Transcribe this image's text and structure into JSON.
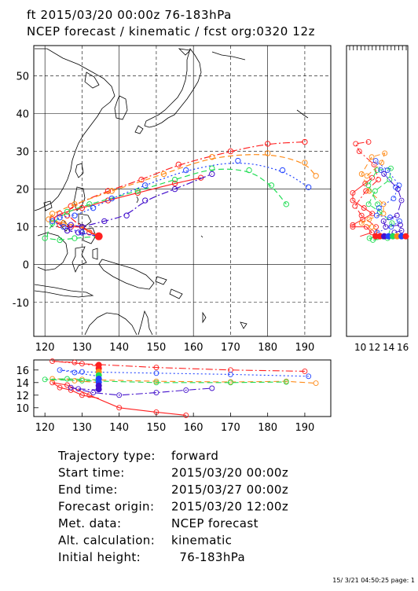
{
  "header": {
    "line1": "ft 2015/03/20 00:00z   76-183hPa",
    "line2": "NCEP forecast / kinematic / fcst org:0320 12z"
  },
  "map": {
    "lat_ticks": [
      "50",
      "40",
      "30",
      "20",
      "10",
      "0",
      "-10"
    ],
    "lon_ticks": [
      "120",
      "130",
      "140",
      "150",
      "160",
      "170",
      "180",
      "190"
    ],
    "origin_lon": 134.5,
    "origin_lat": 7.5
  },
  "side_panel": {
    "tick_labels": [
      "10",
      "12",
      "14",
      "16"
    ]
  },
  "height_panel": {
    "y_ticks": [
      "16",
      "14",
      "12",
      "10"
    ],
    "x_ticks": [
      "120",
      "130",
      "140",
      "150",
      "160",
      "170",
      "180",
      "190"
    ]
  },
  "colors": {
    "red": "#ff2020",
    "orange": "#ff8c1a",
    "green": "#22dd55",
    "blue": "#2244ff",
    "purple": "#4411cc"
  },
  "chart_data": {
    "type": "line",
    "x_label": "",
    "y_label": "",
    "xlim": [
      117,
      197
    ],
    "ylim": [
      -19,
      58
    ],
    "series": [
      {
        "color": "red",
        "style": "solid",
        "points": [
          [
            134.5,
            7.5
          ],
          [
            132,
            8.5
          ],
          [
            130,
            10
          ],
          [
            127,
            10
          ],
          [
            124,
            10.5
          ],
          [
            122,
            12
          ],
          [
            124,
            13.5
          ],
          [
            130,
            15
          ],
          [
            137,
            17
          ],
          [
            145,
            19
          ],
          [
            155,
            21.5
          ],
          [
            162,
            23
          ]
        ]
      },
      {
        "color": "red",
        "style": "dashdot",
        "points": [
          [
            134.5,
            7.5
          ],
          [
            130,
            10
          ],
          [
            126,
            13
          ],
          [
            127,
            15.5
          ],
          [
            137,
            19.5
          ],
          [
            146,
            22.5
          ],
          [
            156,
            26.5
          ],
          [
            170,
            30
          ],
          [
            180,
            32
          ],
          [
            190,
            32.5
          ]
        ]
      },
      {
        "color": "orange",
        "style": "dashed",
        "points": [
          [
            134.5,
            7.5
          ],
          [
            130,
            10
          ],
          [
            125,
            11
          ],
          [
            121,
            12
          ],
          [
            122,
            13.5
          ],
          [
            128,
            16
          ],
          [
            138,
            19.5
          ],
          [
            152,
            24
          ],
          [
            165,
            28.5
          ],
          [
            180,
            29.5
          ],
          [
            190,
            27
          ],
          [
            193,
            23.5
          ]
        ]
      },
      {
        "color": "green",
        "style": "dashed",
        "points": [
          [
            134.5,
            7.5
          ],
          [
            128,
            7
          ],
          [
            124,
            6.5
          ],
          [
            120,
            7
          ],
          [
            122,
            11
          ],
          [
            126,
            14
          ],
          [
            132,
            16
          ],
          [
            145,
            19.5
          ],
          [
            155,
            22.5
          ],
          [
            165,
            25.5
          ],
          [
            175,
            25
          ],
          [
            181,
            21
          ],
          [
            185,
            16
          ]
        ]
      },
      {
        "color": "blue",
        "style": "dotted",
        "points": [
          [
            134.5,
            7.5
          ],
          [
            130,
            8.5
          ],
          [
            125,
            10
          ],
          [
            122,
            11.5
          ],
          [
            124,
            12.5
          ],
          [
            128,
            13
          ],
          [
            133,
            15
          ],
          [
            138,
            17.5
          ],
          [
            147,
            21
          ],
          [
            158,
            25
          ],
          [
            172,
            27.5
          ],
          [
            184,
            25
          ],
          [
            191,
            20.5
          ]
        ]
      },
      {
        "color": "purple",
        "style": "dashdot",
        "points": [
          [
            134.5,
            7.5
          ],
          [
            129,
            8.5
          ],
          [
            126,
            9
          ],
          [
            127,
            10.5
          ],
          [
            130,
            10
          ],
          [
            136,
            11.5
          ],
          [
            142,
            13
          ],
          [
            147,
            17
          ],
          [
            155,
            20
          ],
          [
            165,
            24
          ]
        ]
      }
    ]
  },
  "info": {
    "rows": [
      {
        "label": "Trajectory type:",
        "value": "forward"
      },
      {
        "label": "Start time:",
        "value": "2015/03/20 00:00z"
      },
      {
        "label": "End time:",
        "value": "2015/03/27 00:00z"
      },
      {
        "label": "Forecast origin:",
        "value": "2015/03/20 12:00z"
      },
      {
        "label": "Met. data:",
        "value": "NCEP forecast"
      },
      {
        "label": "Alt. calculation:",
        "value": "kinematic"
      },
      {
        "label": "Initial height:",
        "value": "  76-183hPa"
      }
    ]
  },
  "footer": {
    "stamp": "15/ 3/21 04:50:25 page: 1"
  }
}
